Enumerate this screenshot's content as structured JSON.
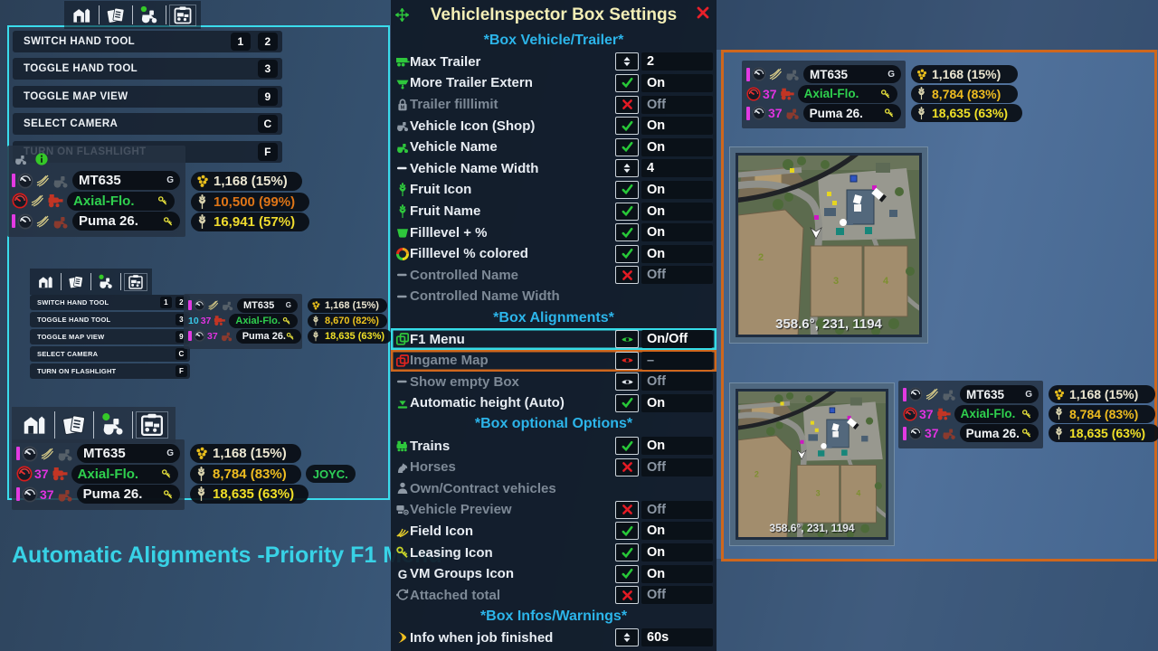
{
  "colors": {
    "accent_cyan": "#3adcec",
    "accent_orange": "#cf671d",
    "header_cyan": "#2cb5ea",
    "title_yellow": "#f3eeb6",
    "caption_cyan": "#38d2e6"
  },
  "caption": "Automatic Alignments -Priority F1 Menu",
  "hud_icon_bar": {
    "icons": [
      "barn-icon",
      "documents-icon",
      "tractor-icon",
      "vehicle-clipboard-icon"
    ]
  },
  "f1_menu": {
    "items": [
      {
        "label": "SWITCH HAND TOOL",
        "keys": [
          "1",
          "2"
        ]
      },
      {
        "label": "TOGGLE HAND TOOL",
        "keys": [
          "3"
        ]
      },
      {
        "label": "TOGGLE MAP VIEW",
        "keys": [
          "9"
        ]
      },
      {
        "label": "SELECT CAMERA",
        "keys": [
          "C"
        ]
      },
      {
        "label": "TURN ON FLASHLIGHT",
        "keys": [
          "F"
        ]
      }
    ]
  },
  "vehicle_boxes": {
    "main": {
      "header_icons": [
        "vehicle-ghost-icon",
        "info-icon"
      ],
      "rows": [
        {
          "bar": true,
          "gauge": "gray",
          "wheat": true,
          "vehicle": "tractor-dark",
          "name": "MT635",
          "name_color": "#f2f4f6",
          "badge": "G",
          "fill_icon": "canola",
          "fill": "1,168 (15%)",
          "fill_color": "#ece7d2"
        },
        {
          "gauge": "red",
          "wheat": true,
          "vehicle": "combine-red",
          "name": "Axial-Flo.",
          "name_color": "#2fd04e",
          "badge": "key",
          "fill_icon": "wheat",
          "fill": "10,500 (99%)",
          "fill_color": "#de7517"
        },
        {
          "bar": true,
          "gauge": "gray",
          "wheat": true,
          "vehicle": "tractor-red",
          "name": "Puma 26.",
          "name_color": "#f2f4f6",
          "badge": "key",
          "fill_icon": "wheat",
          "fill": "16,941 (57%)",
          "fill_color": "#f0dc2e"
        }
      ]
    },
    "compact": {
      "rows": [
        {
          "bar": true,
          "gauge": "gray",
          "wheat": true,
          "vehicle": "tractor-dark",
          "name": "MT635",
          "name_color": "#f2f4f6",
          "badge": "G",
          "fill_icon": "canola",
          "fill": "1,168 (15%)",
          "fill_color": "#ece7d2"
        },
        {
          "speeds": [
            {
              "text": "10",
              "color": "#38c8e8"
            },
            {
              "text": "37",
              "color": "#e033e0"
            }
          ],
          "vehicle": "combine-red",
          "name": "Axial-Flo.",
          "name_color": "#2fd04e",
          "badge": "key",
          "fill_icon": "wheat",
          "fill": "8,670 (82%)",
          "fill_color": "#eec41e"
        },
        {
          "bar": true,
          "gauge": "gray",
          "speeds": [
            {
              "text": "37",
              "color": "#e033e0"
            }
          ],
          "vehicle": "tractor-red",
          "name": "Puma 26.",
          "name_color": "#f2f4f6",
          "badge": "key",
          "fill_icon": "wheat",
          "fill": "18,635 (63%)",
          "fill_color": "#f0e028"
        }
      ]
    },
    "bottom_left": {
      "rows": [
        {
          "bar": true,
          "gauge": "gray",
          "wheat": true,
          "vehicle": "tractor-dark",
          "name": "MT635",
          "name_color": "#f2f4f6",
          "badge": "G",
          "fill_icon": "canola",
          "fill": "1,168 (15%)",
          "fill_color": "#ece7d2"
        },
        {
          "gauge": "red",
          "speeds": [
            {
              "text": "37",
              "color": "#e033e0"
            }
          ],
          "vehicle": "combine-red",
          "name": "Axial-Flo.",
          "name_color": "#2fd04e",
          "badge": "key",
          "fill_icon": "wheat",
          "fill": "8,784 (83%)",
          "fill_color": "#eebc20",
          "tag": "JOYC."
        },
        {
          "bar": true,
          "gauge": "gray",
          "speeds": [
            {
              "text": "37",
              "color": "#e033e0"
            }
          ],
          "vehicle": "tractor-red",
          "name": "Puma 26.",
          "name_color": "#f2f4f6",
          "badge": "key",
          "fill_icon": "wheat",
          "fill": "18,635 (63%)",
          "fill_color": "#f0e028"
        }
      ]
    },
    "right_top": {
      "rows": [
        {
          "bar": true,
          "gauge": "gray",
          "wheat": true,
          "vehicle": "tractor-dark",
          "name": "MT635",
          "name_color": "#f2f4f6",
          "badge": "G",
          "fill_icon": "canola",
          "fill": "1,168 (15%)",
          "fill_color": "#ece7d2"
        },
        {
          "gauge": "red",
          "speeds": [
            {
              "text": "37",
              "color": "#e033e0"
            }
          ],
          "vehicle": "combine-red",
          "name": "Axial-Flo.",
          "name_color": "#2fd04e",
          "badge": "key",
          "fill_icon": "wheat",
          "fill": "8,784 (83%)",
          "fill_color": "#eebc20"
        },
        {
          "bar": true,
          "gauge": "gray",
          "speeds": [
            {
              "text": "37",
              "color": "#e033e0"
            }
          ],
          "vehicle": "tractor-red",
          "name": "Puma 26.",
          "name_color": "#f2f4f6",
          "badge": "key",
          "fill_icon": "wheat",
          "fill": "18,635 (63%)",
          "fill_color": "#f0e028"
        }
      ]
    },
    "right_bottom": {
      "rows": [
        {
          "bar": true,
          "gauge": "gray",
          "wheat": true,
          "vehicle": "tractor-dark",
          "name": "MT635",
          "name_color": "#f2f4f6",
          "badge": "G",
          "fill_icon": "canola",
          "fill": "1,168 (15%)",
          "fill_color": "#ece7d2"
        },
        {
          "gauge": "red",
          "speeds": [
            {
              "text": "37",
              "color": "#e033e0"
            }
          ],
          "vehicle": "combine-red",
          "name": "Axial-Flo.",
          "name_color": "#2fd04e",
          "badge": "key",
          "fill_icon": "wheat",
          "fill": "8,784 (83%)",
          "fill_color": "#eebc20"
        },
        {
          "bar": true,
          "gauge": "gray",
          "speeds": [
            {
              "text": "37",
              "color": "#e033e0"
            }
          ],
          "vehicle": "tractor-red",
          "name": "Puma 26.",
          "name_color": "#f2f4f6",
          "badge": "key",
          "fill_icon": "wheat",
          "fill": "18,635 (63%)",
          "fill_color": "#f0e028"
        }
      ]
    }
  },
  "minimap": {
    "coords": "358.6°, 231, 1194",
    "field_numbers": [
      "2",
      "3",
      "4"
    ]
  },
  "settings_panel": {
    "title": "VehicleInspector Box Settings",
    "rows": [
      {
        "type": "header",
        "label": "*Box Vehicle/Trailer*"
      },
      {
        "type": "row",
        "icon": "trailer-max",
        "label": "Max Trailer",
        "control": "stepper",
        "value": "2"
      },
      {
        "type": "row",
        "icon": "trailer-extern",
        "label": "More Trailer Extern",
        "control": "check",
        "value": "On"
      },
      {
        "type": "row",
        "icon": "lock-m",
        "label": "Trailer filllimit",
        "control": "cross",
        "value": "Off",
        "disabled": true
      },
      {
        "type": "row",
        "icon": "tractor-shop",
        "label": "Vehicle Icon (Shop)",
        "control": "check",
        "value": "On"
      },
      {
        "type": "row",
        "icon": "tractor-green",
        "label": "Vehicle Name",
        "control": "check",
        "value": "On"
      },
      {
        "type": "row",
        "icon": "dash-white",
        "label": "Vehicle Name Width",
        "control": "stepper",
        "value": "4"
      },
      {
        "type": "row",
        "icon": "wheat-green",
        "label": "Fruit Icon",
        "control": "check",
        "value": "On"
      },
      {
        "type": "row",
        "icon": "wheat-green",
        "label": "Fruit Name",
        "control": "check",
        "value": "On"
      },
      {
        "type": "row",
        "icon": "basket-green",
        "label": "Filllevel + %",
        "control": "check",
        "value": "On"
      },
      {
        "type": "row",
        "icon": "colorwheel",
        "label": "Filllevel % colored",
        "control": "check",
        "value": "On"
      },
      {
        "type": "row",
        "icon": "dash-gray",
        "label": "Controlled Name",
        "control": "cross",
        "value": "Off",
        "disabled": true
      },
      {
        "type": "row",
        "icon": "dash-gray",
        "label": "Controlled Name Width",
        "control": "none",
        "value": "",
        "disabled": true
      },
      {
        "type": "header",
        "label": "*Box Alignments*"
      },
      {
        "type": "row",
        "icon": "windows-green",
        "label": "F1 Menu",
        "control": "eye",
        "eye": "green",
        "value": "On/Off",
        "highlight": "cyan"
      },
      {
        "type": "row",
        "icon": "windows-red",
        "label": "Ingame Map",
        "control": "eye",
        "eye": "red",
        "value": "–",
        "disabled": true,
        "highlight": "orange"
      },
      {
        "type": "row",
        "icon": "dash-gray",
        "label": "Show empty Box",
        "control": "eye",
        "eye": "white",
        "value": "Off",
        "disabled": true
      },
      {
        "type": "row",
        "icon": "autoheight",
        "label": "Automatic height (Auto)",
        "control": "check",
        "value": "On"
      },
      {
        "type": "header",
        "label": "*Box optional Options*"
      },
      {
        "type": "row",
        "icon": "train-green",
        "label": "Trains",
        "control": "check",
        "value": "On"
      },
      {
        "type": "row",
        "icon": "horse-gray",
        "label": "Horses",
        "control": "cross",
        "value": "Off",
        "disabled": true
      },
      {
        "type": "row",
        "icon": "person-gray",
        "label": "Own/Contract vehicles",
        "control": "none",
        "value": "",
        "disabled": true
      },
      {
        "type": "row",
        "icon": "preview-gray",
        "label": "Vehicle Preview",
        "control": "cross",
        "value": "Off",
        "disabled": true
      },
      {
        "type": "row",
        "icon": "field-yellow",
        "label": "Field Icon",
        "control": "check",
        "value": "On"
      },
      {
        "type": "row",
        "icon": "key-yellow",
        "label": "Leasing Icon",
        "control": "check",
        "value": "On"
      },
      {
        "type": "row",
        "icon": "vm-groups",
        "label": "VM Groups Icon",
        "control": "check",
        "value": "On"
      },
      {
        "type": "row",
        "icon": "attach-gray",
        "label": "Attached total",
        "control": "cross",
        "value": "Off",
        "disabled": true
      },
      {
        "type": "header",
        "label": "*Box Infos/Warnings*"
      },
      {
        "type": "row",
        "icon": "chevron-yellow",
        "label": "Info when job finished",
        "control": "stepper",
        "value": "60s"
      }
    ]
  }
}
